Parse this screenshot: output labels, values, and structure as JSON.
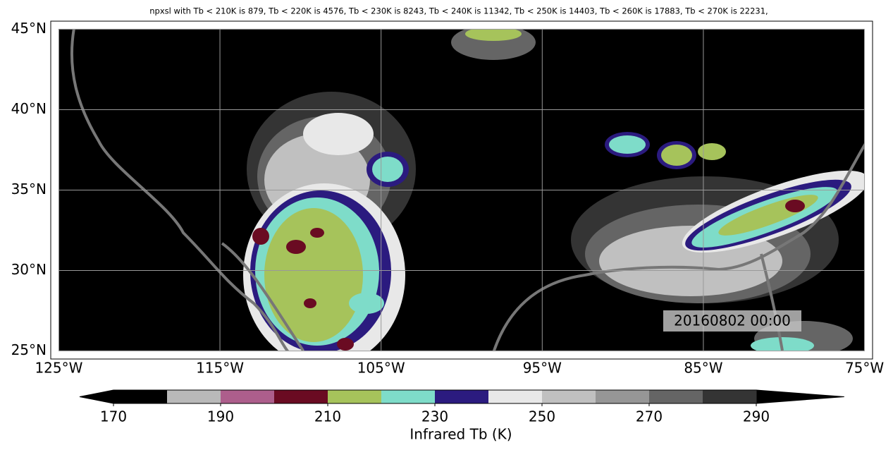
{
  "title": "npxsl with Tb < 210K is 879,  Tb < 220K is 4576,  Tb < 230K is 8243,  Tb < 240K is 11342,  Tb < 250K is 14403,  Tb < 260K is 17883,  Tb < 270K is 22231,",
  "map": {
    "xlim": [
      -125.5,
      -74.5
    ],
    "ylim": [
      24.5,
      45.5
    ],
    "extent_lon": [
      -125,
      -75
    ],
    "extent_lat": [
      25,
      45
    ],
    "xticks": [
      {
        "value": -125,
        "label": "125°W"
      },
      {
        "value": -115,
        "label": "115°W"
      },
      {
        "value": -105,
        "label": "105°W"
      },
      {
        "value": -95,
        "label": "95°W"
      },
      {
        "value": -85,
        "label": "85°W"
      },
      {
        "value": -75,
        "label": "75°W"
      }
    ],
    "yticks": [
      {
        "value": 25,
        "label": "25°N"
      },
      {
        "value": 30,
        "label": "30°N"
      },
      {
        "value": 35,
        "label": "35°N"
      },
      {
        "value": 40,
        "label": "40°N"
      },
      {
        "value": 45,
        "label": "45°N"
      }
    ],
    "grid": true,
    "timestamp": "20160802 00:00"
  },
  "colorbar": {
    "label": "Infrared Tb (K)",
    "bounds": [
      170,
      180,
      190,
      200,
      210,
      220,
      230,
      240,
      250,
      260,
      270,
      280,
      290
    ],
    "colors": [
      "#000000",
      "#b9b9b9",
      "#ad5e8c",
      "#6a0b22",
      "#a6c35b",
      "#7edcc9",
      "#2b1b7f",
      "#e8e8e8",
      "#c0c0c0",
      "#969696",
      "#656565",
      "#343434"
    ],
    "under_color": "#000000",
    "over_color": "#000000",
    "ticks": [
      170,
      190,
      210,
      230,
      250,
      270,
      290
    ]
  }
}
